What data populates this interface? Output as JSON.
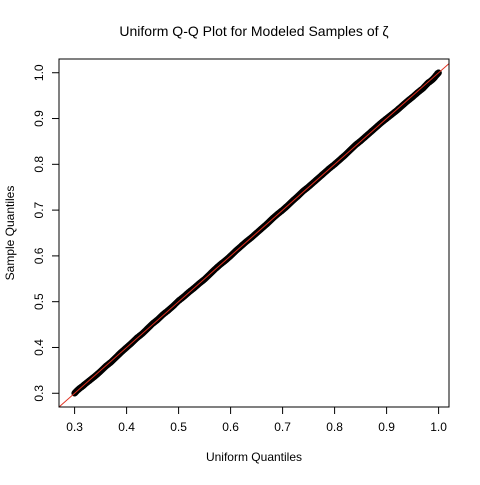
{
  "chart_data": {
    "type": "scatter",
    "title": "Uniform Q-Q Plot for Modeled Samples of ζ",
    "xlabel": "Uniform Quantiles",
    "ylabel": "Sample Quantiles",
    "xlim": [
      0.27,
      1.02
    ],
    "ylim": [
      0.27,
      1.03
    ],
    "x_ticks": [
      0.3,
      0.4,
      0.5,
      0.6,
      0.7,
      0.8,
      0.9,
      1.0
    ],
    "x_tick_labels": [
      "0.3",
      "0.4",
      "0.5",
      "0.6",
      "0.7",
      "0.8",
      "0.9",
      "1.0"
    ],
    "y_ticks": [
      0.3,
      0.4,
      0.5,
      0.6,
      0.7,
      0.8,
      0.9,
      1.0
    ],
    "y_tick_labels": [
      "0.3",
      "0.4",
      "0.5",
      "0.6",
      "0.7",
      "0.8",
      "0.9",
      "1.0"
    ],
    "reference_line": {
      "intercept": 0,
      "slope": 1,
      "color": "#e03020"
    },
    "point_color": "#000000",
    "grid": false,
    "legend": "none",
    "points": [
      [
        0.3,
        0.3
      ],
      [
        0.305,
        0.306
      ],
      [
        0.31,
        0.311
      ],
      [
        0.315,
        0.315
      ],
      [
        0.32,
        0.32
      ],
      [
        0.33,
        0.329
      ],
      [
        0.34,
        0.338
      ],
      [
        0.35,
        0.348
      ],
      [
        0.36,
        0.359
      ],
      [
        0.37,
        0.368
      ],
      [
        0.38,
        0.379
      ],
      [
        0.39,
        0.39
      ],
      [
        0.4,
        0.4
      ],
      [
        0.41,
        0.41
      ],
      [
        0.42,
        0.421
      ],
      [
        0.43,
        0.43
      ],
      [
        0.44,
        0.441
      ],
      [
        0.45,
        0.452
      ],
      [
        0.46,
        0.461
      ],
      [
        0.47,
        0.472
      ],
      [
        0.48,
        0.481
      ],
      [
        0.49,
        0.491
      ],
      [
        0.5,
        0.502
      ],
      [
        0.51,
        0.511
      ],
      [
        0.52,
        0.521
      ],
      [
        0.53,
        0.53
      ],
      [
        0.54,
        0.54
      ],
      [
        0.55,
        0.549
      ],
      [
        0.56,
        0.56
      ],
      [
        0.57,
        0.571
      ],
      [
        0.58,
        0.581
      ],
      [
        0.59,
        0.59
      ],
      [
        0.6,
        0.6
      ],
      [
        0.61,
        0.611
      ],
      [
        0.62,
        0.621
      ],
      [
        0.63,
        0.631
      ],
      [
        0.64,
        0.64
      ],
      [
        0.65,
        0.65
      ],
      [
        0.66,
        0.66
      ],
      [
        0.67,
        0.67
      ],
      [
        0.68,
        0.681
      ],
      [
        0.69,
        0.691
      ],
      [
        0.7,
        0.7
      ],
      [
        0.71,
        0.71
      ],
      [
        0.72,
        0.721
      ],
      [
        0.73,
        0.731
      ],
      [
        0.74,
        0.742
      ],
      [
        0.75,
        0.751
      ],
      [
        0.76,
        0.761
      ],
      [
        0.77,
        0.771
      ],
      [
        0.78,
        0.781
      ],
      [
        0.79,
        0.791
      ],
      [
        0.8,
        0.8
      ],
      [
        0.81,
        0.81
      ],
      [
        0.82,
        0.82
      ],
      [
        0.83,
        0.831
      ],
      [
        0.84,
        0.842
      ],
      [
        0.85,
        0.851
      ],
      [
        0.86,
        0.861
      ],
      [
        0.87,
        0.871
      ],
      [
        0.88,
        0.881
      ],
      [
        0.89,
        0.891
      ],
      [
        0.9,
        0.9
      ],
      [
        0.91,
        0.909
      ],
      [
        0.92,
        0.918
      ],
      [
        0.93,
        0.928
      ],
      [
        0.94,
        0.938
      ],
      [
        0.95,
        0.947
      ],
      [
        0.96,
        0.957
      ],
      [
        0.97,
        0.966
      ],
      [
        0.975,
        0.972
      ],
      [
        0.98,
        0.978
      ],
      [
        0.985,
        0.982
      ],
      [
        0.99,
        0.987
      ],
      [
        0.993,
        0.991
      ],
      [
        0.996,
        0.995
      ],
      [
        0.998,
        0.998
      ],
      [
        1.0,
        1.0
      ]
    ]
  }
}
